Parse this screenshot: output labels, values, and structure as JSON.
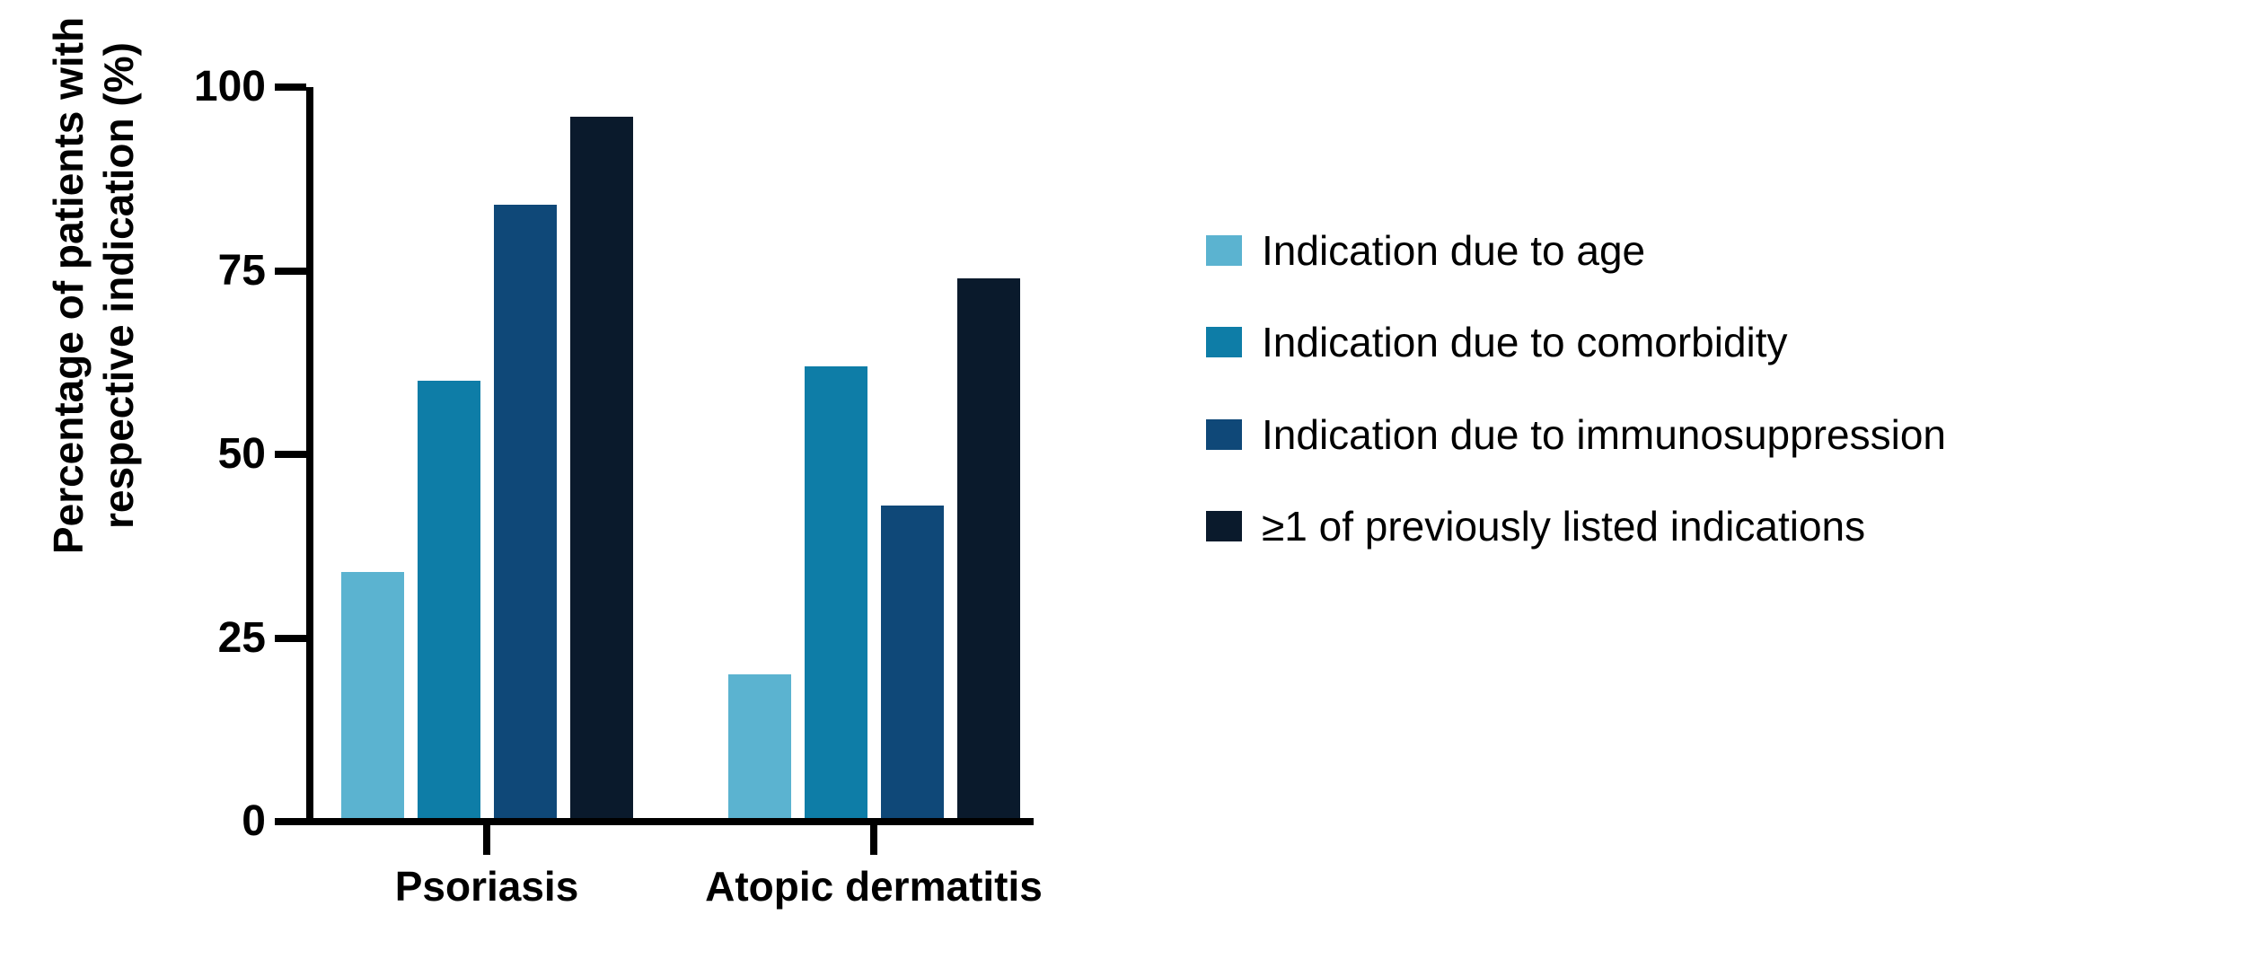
{
  "figure": {
    "background": "#ffffff",
    "axis_color": "#000000",
    "text_color": "#000000"
  },
  "y_axis": {
    "title_line1": "Percentage of patients with",
    "title_line2": "respective indication (%)"
  },
  "chart_data": {
    "type": "bar",
    "categories": [
      "Psoriasis",
      "Atopic dermatitis"
    ],
    "series": [
      {
        "name": "Indication due to age",
        "color": "#5bb3d0",
        "values": [
          34,
          20
        ]
      },
      {
        "name": "Indication due to comorbidity",
        "color": "#0e7da7",
        "values": [
          60,
          62
        ]
      },
      {
        "name": "Indication due to immunosuppression",
        "color": "#0f4878",
        "values": [
          84,
          43
        ]
      },
      {
        "name": "≥1 of previously listed indications",
        "color": "#0a1a2c",
        "values": [
          96,
          74
        ]
      }
    ],
    "title": "",
    "xlabel": "",
    "ylabel": "Percentage of patients with respective indication (%)",
    "ylim": [
      0,
      100
    ],
    "yticks": [
      0,
      25,
      50,
      75,
      100
    ],
    "grid": false,
    "legend_position": "right"
  }
}
